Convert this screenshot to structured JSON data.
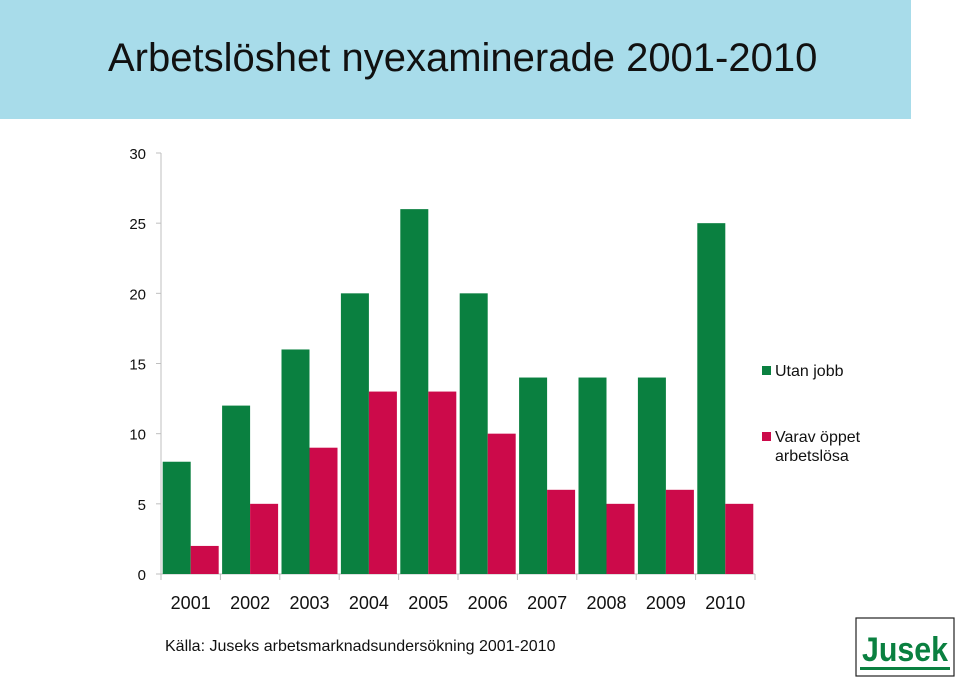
{
  "header": {
    "title": "Arbetslöshet nyexaminerade 2001-2010",
    "background": "#a8dcea"
  },
  "chart_data": {
    "type": "bar",
    "title": "Arbetslöshet nyexaminerade 2001-2010",
    "categories": [
      "2001",
      "2002",
      "2003",
      "2004",
      "2005",
      "2006",
      "2007",
      "2008",
      "2009",
      "2010"
    ],
    "series": [
      {
        "name": "Utan jobb",
        "color": "#0a8040",
        "values": [
          8,
          12,
          16,
          20,
          26,
          20,
          14,
          14,
          14,
          25
        ]
      },
      {
        "name": "Varav öppet arbetslösa",
        "color": "#cc0a4a",
        "values": [
          2,
          5,
          9,
          13,
          13,
          10,
          6,
          5,
          6,
          5
        ]
      }
    ],
    "legend_lines": [
      [
        "Utan jobb"
      ],
      [
        "Varav öppet",
        "arbetslösa"
      ]
    ],
    "ylim": [
      0,
      30
    ],
    "yticks": [
      0,
      5,
      10,
      15,
      20,
      25,
      30
    ],
    "xlabel": "",
    "ylabel": "",
    "grid": false,
    "legend_position": "right"
  },
  "footer": {
    "source": "Källa: Juseks arbetsmarknadsundersökning 2001-2010"
  },
  "logo": {
    "text": "Jusek",
    "color": "#0a8040"
  }
}
